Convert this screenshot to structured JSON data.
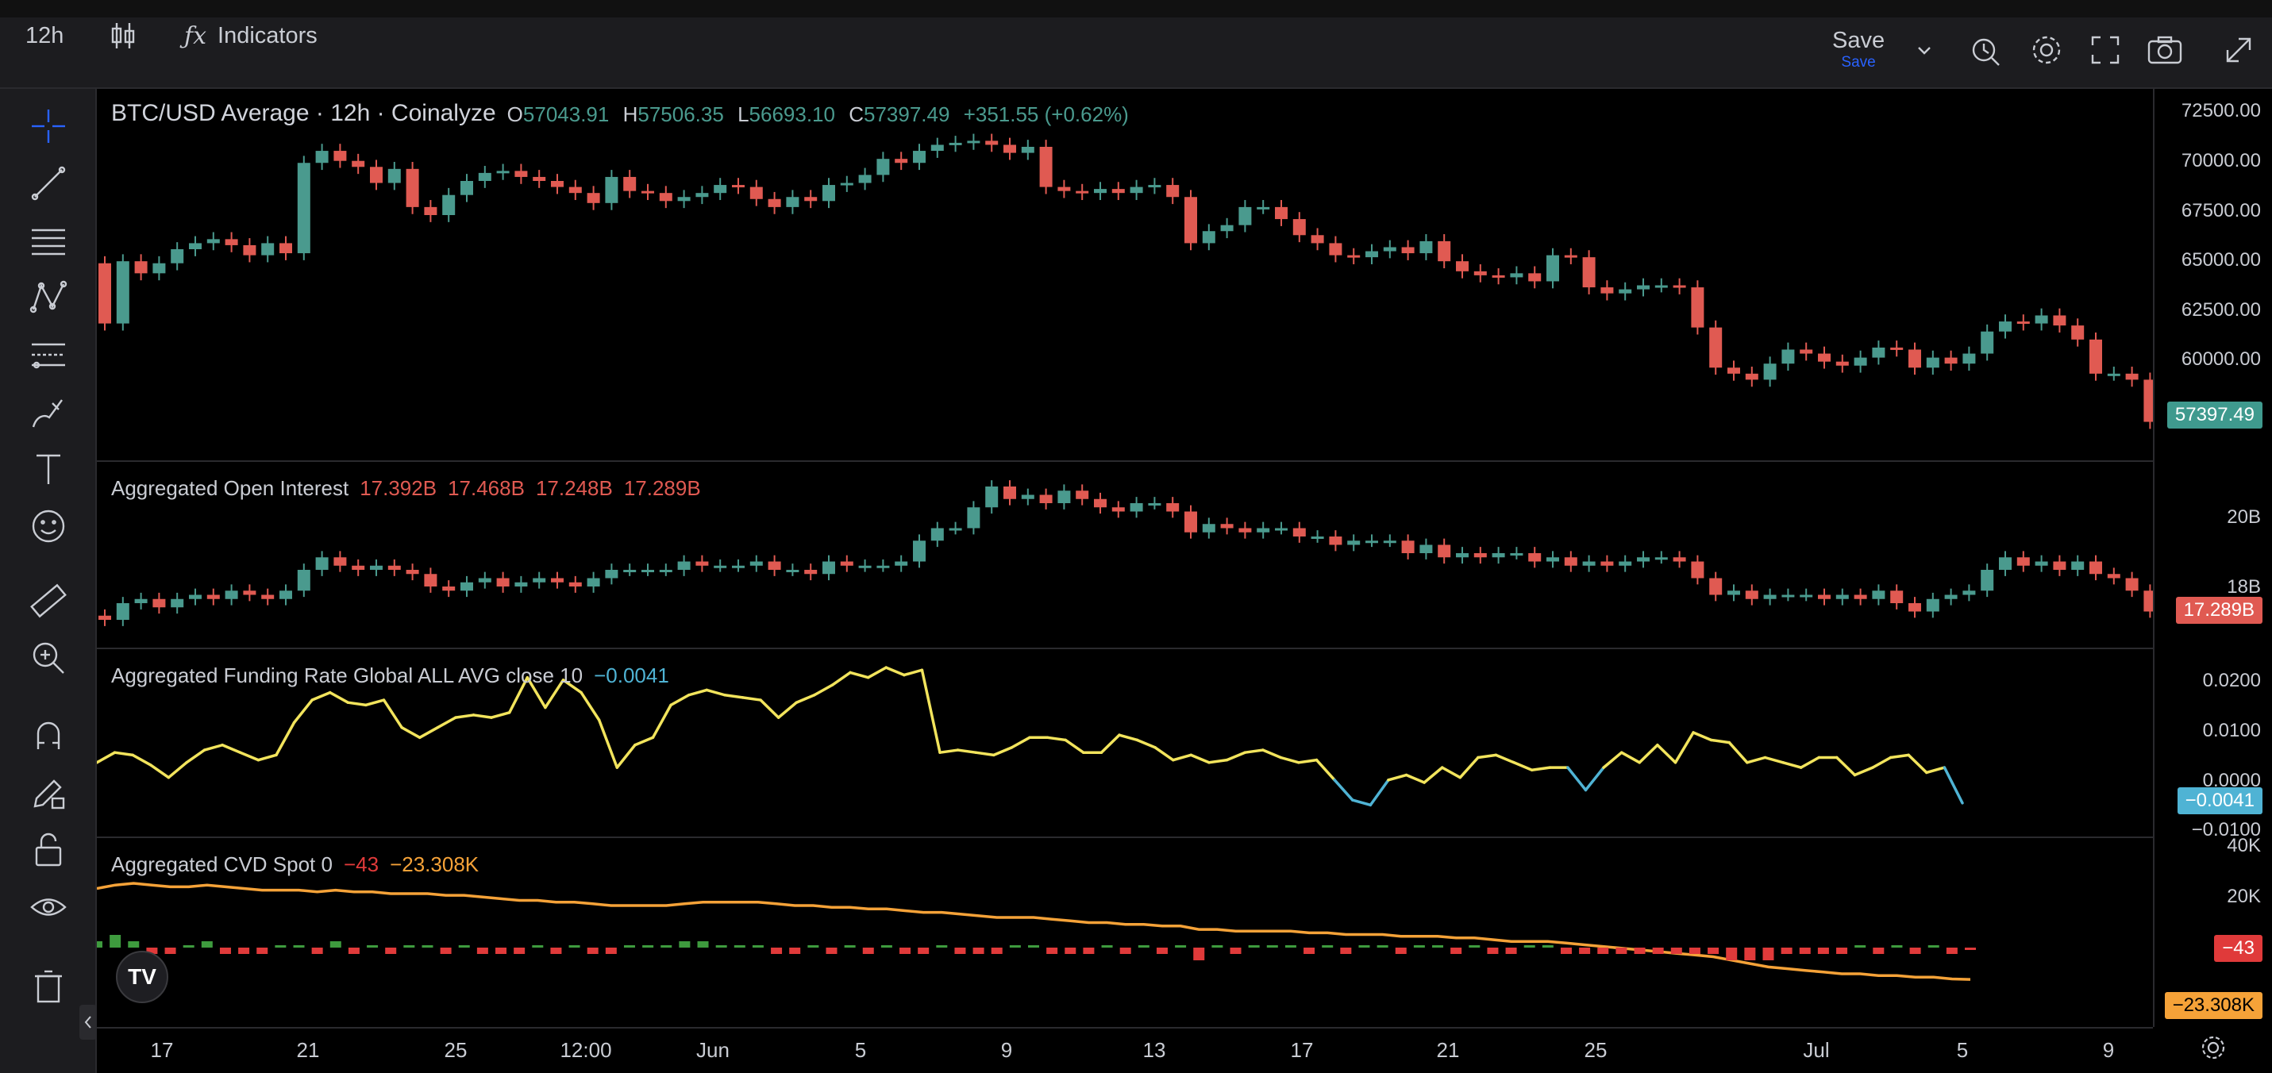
{
  "toolbar": {
    "interval": "12h",
    "indicators_label": "Indicators",
    "save_label": "Save",
    "save_sub_label": "Save"
  },
  "legend": {
    "symbol": "BTC/USD Average · 12h · Coinalyze",
    "o_label": "O",
    "o": "57043.91",
    "h_label": "H",
    "h": "57506.35",
    "l_label": "L",
    "l": "56693.10",
    "c_label": "C",
    "c": "57397.49",
    "change": "+351.55 (+0.62%)"
  },
  "panes": {
    "oi": {
      "title": "Aggregated Open Interest",
      "v1": "17.392B",
      "v2": "17.468B",
      "v3": "17.248B",
      "v4": "17.289B",
      "axis": [
        "20B",
        "18B"
      ],
      "tag": "17.289B"
    },
    "funding": {
      "title": "Aggregated Funding Rate Global ALL AVG close 10",
      "value": "−0.0041",
      "axis": [
        "0.0200",
        "0.0100",
        "0.0000",
        "−0.0100"
      ],
      "tag": "−0.0041"
    },
    "cvd": {
      "title": "Aggregated CVD Spot 0",
      "v1": "−43",
      "v2": "−23.308K",
      "axis": [
        "40K",
        "20K"
      ],
      "tag1": "−43",
      "tag2": "−23.308K"
    }
  },
  "price_axis": [
    "72500.00",
    "70000.00",
    "67500.00",
    "65000.00",
    "62500.00",
    "60000.00"
  ],
  "price_tag": "57397.49",
  "x_axis": [
    "17",
    "21",
    "25",
    "12:00",
    "Jun",
    "5",
    "9",
    "13",
    "17",
    "21",
    "25",
    "Jul",
    "5",
    "9"
  ],
  "colors": {
    "up": "#4a9a8e",
    "down": "#e05a52",
    "funding_pos": "#f2e45c",
    "funding_neg": "#4fb3d4",
    "cvd": "#f5a238",
    "cvd_up": "#3e9b3e",
    "cvd_down": "#e03a3a"
  },
  "chart_data": [
    {
      "type": "candlestick",
      "title": "BTC/USD Average · 12h · Coinalyze",
      "ylim": [
        57000,
        73000
      ],
      "close": [
        63000,
        66100,
        65500,
        66000,
        66700,
        67000,
        67200,
        66900,
        66400,
        67000,
        66500,
        71000,
        71600,
        71100,
        70800,
        70000,
        70700,
        68800,
        68400,
        69400,
        70100,
        70500,
        70600,
        70300,
        70100,
        69800,
        69500,
        69000,
        70300,
        69600,
        69500,
        69100,
        69300,
        69500,
        69900,
        69800,
        69200,
        68800,
        69300,
        69100,
        69900,
        70000,
        70400,
        71200,
        71000,
        71600,
        71900,
        72000,
        72100,
        71900,
        71500,
        71800,
        69800,
        69600,
        69500,
        69700,
        69500,
        69800,
        69900,
        69300,
        67000,
        67600,
        67900,
        68800,
        68800,
        68200,
        67400,
        67000,
        66400,
        66300,
        66600,
        66800,
        66500,
        67100,
        66100,
        65600,
        65400,
        65300,
        65500,
        65100,
        66400,
        66300,
        64800,
        64500,
        64700,
        64900,
        64900,
        64800,
        62800,
        60800,
        60500,
        60200,
        61000,
        61700,
        61500,
        61100,
        60900,
        61300,
        61800,
        61700,
        60800,
        61300,
        61000,
        61500,
        62600,
        63100,
        63000,
        63400,
        62900,
        62200,
        60500,
        60500,
        60200,
        58100,
        57400,
        57400
      ]
    },
    {
      "type": "bar",
      "title": "Aggregated Open Interest",
      "unit": "B",
      "values": [
        17.4,
        17.8,
        17.9,
        17.7,
        17.9,
        18.0,
        17.9,
        18.1,
        18.0,
        17.9,
        18.1,
        18.6,
        18.9,
        18.7,
        18.6,
        18.7,
        18.6,
        18.5,
        18.2,
        18.1,
        18.3,
        18.4,
        18.2,
        18.3,
        18.4,
        18.3,
        18.2,
        18.4,
        18.6,
        18.6,
        18.6,
        18.6,
        18.8,
        18.7,
        18.7,
        18.7,
        18.8,
        18.6,
        18.6,
        18.5,
        18.8,
        18.7,
        18.7,
        18.7,
        18.8,
        19.3,
        19.6,
        19.6,
        20.1,
        20.6,
        20.3,
        20.4,
        20.2,
        20.5,
        20.3,
        20.1,
        20.0,
        20.2,
        20.2,
        20.0,
        19.5,
        19.7,
        19.6,
        19.5,
        19.6,
        19.6,
        19.4,
        19.4,
        19.2,
        19.3,
        19.3,
        19.3,
        19.0,
        19.2,
        18.9,
        19.0,
        18.9,
        19.0,
        19.0,
        18.8,
        18.9,
        18.7,
        18.8,
        18.7,
        18.8,
        18.9,
        18.9,
        18.8,
        18.4,
        18.0,
        18.1,
        17.9,
        18.0,
        18.0,
        18.0,
        17.9,
        18.0,
        17.9,
        18.1,
        17.8,
        17.6,
        17.9,
        18.0,
        18.1,
        18.6,
        18.9,
        18.7,
        18.8,
        18.6,
        18.8,
        18.5,
        18.4,
        18.1,
        17.6,
        17.4,
        17.3
      ]
    },
    {
      "type": "line",
      "title": "Aggregated Funding Rate Global ALL AVG close 10",
      "ylim": [
        -0.01,
        0.025
      ],
      "values": [
        0.004,
        0.006,
        0.0055,
        0.0035,
        0.001,
        0.004,
        0.0065,
        0.0075,
        0.006,
        0.0045,
        0.0055,
        0.012,
        0.0165,
        0.018,
        0.016,
        0.0155,
        0.0165,
        0.011,
        0.009,
        0.011,
        0.013,
        0.0135,
        0.013,
        0.014,
        0.021,
        0.015,
        0.0205,
        0.018,
        0.0125,
        0.003,
        0.0075,
        0.009,
        0.0155,
        0.0175,
        0.0185,
        0.0175,
        0.017,
        0.0165,
        0.013,
        0.016,
        0.0175,
        0.0195,
        0.022,
        0.021,
        0.023,
        0.0215,
        0.0225,
        0.006,
        0.0065,
        0.006,
        0.0055,
        0.007,
        0.009,
        0.009,
        0.0085,
        0.006,
        0.006,
        0.0095,
        0.0085,
        0.007,
        0.0045,
        0.0055,
        0.004,
        0.0045,
        0.006,
        0.0065,
        0.005,
        0.004,
        0.0045,
        0.0005,
        -0.0035,
        -0.0045,
        0.0005,
        0.0015,
        0.0,
        0.003,
        0.001,
        0.005,
        0.0055,
        0.004,
        0.0025,
        0.003,
        0.003,
        -0.0015,
        0.003,
        0.006,
        0.004,
        0.0075,
        0.004,
        0.01,
        0.0085,
        0.008,
        0.004,
        0.005,
        0.004,
        0.003,
        0.005,
        0.005,
        0.0015,
        0.003,
        0.005,
        0.0055,
        0.002,
        0.003,
        -0.0041
      ]
    },
    {
      "type": "line",
      "title": "Aggregated CVD Spot 0",
      "unit": "K",
      "values": [
        30,
        32,
        33,
        32,
        31,
        31,
        32,
        31,
        30,
        29,
        29,
        29,
        28,
        29,
        28,
        28,
        27,
        27,
        27,
        26,
        26,
        25,
        24,
        23,
        23,
        22,
        22,
        21,
        20,
        20,
        20,
        20,
        21,
        22,
        22,
        22,
        22,
        21,
        20,
        20,
        19,
        19,
        18,
        18,
        17,
        16,
        16,
        15,
        14,
        13,
        13,
        13,
        12,
        11,
        10,
        10,
        9,
        9,
        8,
        8,
        6,
        6,
        5,
        5,
        5,
        5,
        4,
        4,
        3,
        3,
        3,
        2,
        2,
        2,
        1,
        1,
        0,
        -1,
        -1,
        -1,
        -2,
        -3,
        -4,
        -5,
        -6,
        -7,
        -8,
        -9,
        -10,
        -12,
        -14,
        -16,
        -17,
        -18,
        -19,
        -20,
        -20,
        -21,
        -21,
        -22,
        -22,
        -23,
        -23.3
      ]
    }
  ]
}
